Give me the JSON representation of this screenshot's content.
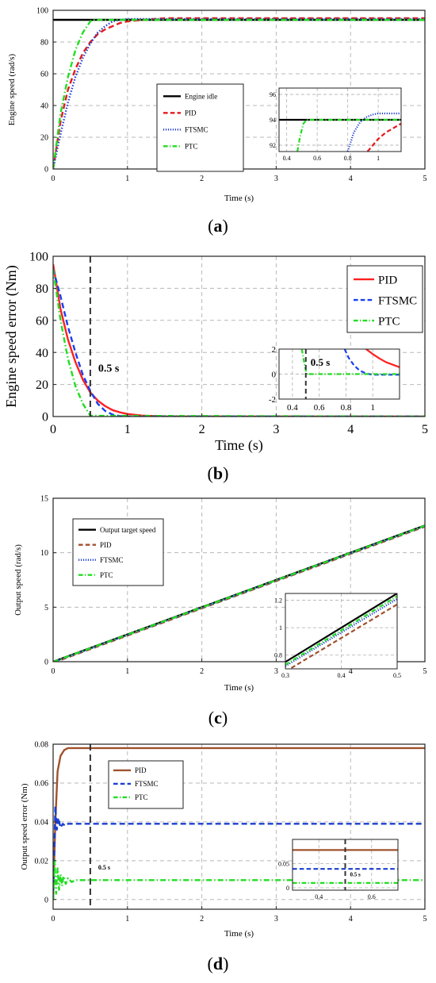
{
  "chart_data": [
    {
      "id": "a",
      "type": "line",
      "caption_letter": "a",
      "xlabel": "Time (s)",
      "ylabel": "Engine speed (rad/s)",
      "xlim": [
        0,
        5
      ],
      "ylim": [
        0,
        100
      ],
      "xticks": [
        0,
        1,
        2,
        3,
        4,
        5
      ],
      "yticks": [
        0,
        20,
        40,
        60,
        80,
        100
      ],
      "grid": true,
      "legend_position": "center",
      "series": [
        {
          "name": "Engine idle",
          "color": "#000000",
          "dash": "solid",
          "x": [
            0,
            5
          ],
          "y": [
            94,
            94
          ]
        },
        {
          "name": "PID",
          "color": "#e31a1c",
          "dash": "dash",
          "x": [
            0,
            0.1,
            0.2,
            0.3,
            0.4,
            0.5,
            0.6,
            0.7,
            0.8,
            0.9,
            1.0,
            1.2,
            1.5,
            2,
            3,
            4,
            5
          ],
          "y": [
            0,
            30,
            50,
            63,
            73,
            80,
            85,
            88,
            90,
            92,
            93,
            94,
            95,
            95,
            95,
            95,
            95
          ]
        },
        {
          "name": "FTSMC",
          "color": "#1f3fcf",
          "dash": "dot",
          "x": [
            0,
            0.1,
            0.2,
            0.3,
            0.4,
            0.5,
            0.6,
            0.7,
            0.8,
            0.9,
            1.0,
            1.5,
            2,
            3,
            4,
            5
          ],
          "y": [
            0,
            22,
            42,
            58,
            70,
            79,
            86,
            90,
            93,
            94,
            94.5,
            94.5,
            94.5,
            94.5,
            94.5,
            94.5
          ]
        },
        {
          "name": "PTC",
          "color": "#22dd22",
          "dash": "dashdot",
          "x": [
            0,
            0.1,
            0.2,
            0.3,
            0.4,
            0.5,
            0.52,
            1,
            2,
            3,
            4,
            5
          ],
          "y": [
            0,
            35,
            58,
            75,
            86,
            93,
            94,
            94,
            94,
            94,
            94,
            94
          ]
        }
      ],
      "inset": {
        "xlim": [
          0.35,
          1.15
        ],
        "ylim": [
          91.5,
          96.5
        ],
        "xticks": [
          0.4,
          0.6,
          0.8,
          1
        ],
        "yticks": [
          92,
          94,
          96
        ],
        "series": [
          {
            "name": "Engine idle",
            "x": [
              0.35,
              1.15
            ],
            "y": [
              94,
              94
            ]
          },
          {
            "name": "PID",
            "x": [
              0.93,
              1.0,
              1.05,
              1.15
            ],
            "y": [
              91.5,
              92.5,
              93.0,
              93.7
            ]
          },
          {
            "name": "FTSMC",
            "x": [
              0.8,
              0.84,
              0.88,
              0.92,
              0.96,
              1.0,
              1.15
            ],
            "y": [
              91.5,
              93.0,
              93.8,
              94.2,
              94.4,
              94.5,
              94.5
            ]
          },
          {
            "name": "PTC",
            "x": [
              0.47,
              0.49,
              0.51,
              0.53,
              1.15
            ],
            "y": [
              91.5,
              92.8,
              93.7,
              94.0,
              94.0
            ]
          }
        ]
      }
    },
    {
      "id": "b",
      "type": "line",
      "caption_letter": "b",
      "xlabel": "Time (s)",
      "ylabel": "Engine speed error (Nm)",
      "xlim": [
        0,
        5
      ],
      "ylim": [
        0,
        100
      ],
      "xticks": [
        0,
        1,
        2,
        3,
        4,
        5
      ],
      "yticks": [
        0,
        20,
        40,
        60,
        80,
        100
      ],
      "grid": true,
      "legend_position": "top-right",
      "vline": {
        "x": 0.5,
        "label": "0.5 s"
      },
      "series": [
        {
          "name": "PID",
          "color": "#ff2020",
          "dash": "solid",
          "x": [
            0,
            0.1,
            0.2,
            0.3,
            0.4,
            0.5,
            0.6,
            0.7,
            0.8,
            0.9,
            1.0,
            1.2,
            1.5,
            2,
            5
          ],
          "y": [
            95,
            67,
            48,
            34,
            23,
            15,
            10,
            6.5,
            4,
            2.6,
            1.6,
            0.6,
            0.1,
            0,
            0
          ]
        },
        {
          "name": "FTSMC",
          "color": "#1a3ff0",
          "dash": "dash",
          "x": [
            0,
            0.1,
            0.2,
            0.3,
            0.4,
            0.5,
            0.6,
            0.7,
            0.8,
            0.9,
            1.0,
            1.2,
            5
          ],
          "y": [
            92,
            75,
            56,
            40,
            26,
            16,
            8,
            3.5,
            1.2,
            0.3,
            0,
            0,
            0
          ]
        },
        {
          "name": "PTC",
          "color": "#22dd22",
          "dash": "dashdot",
          "x": [
            0,
            0.1,
            0.2,
            0.3,
            0.4,
            0.5,
            5
          ],
          "y": [
            92,
            60,
            36,
            19,
            8,
            0.5,
            0
          ]
        }
      ],
      "inset": {
        "xlim": [
          0.3,
          1.2
        ],
        "ylim": [
          -2,
          2
        ],
        "xticks": [
          0.4,
          0.6,
          0.8,
          1
        ],
        "yticks": [
          -2,
          0,
          2
        ],
        "vline": {
          "x": 0.5,
          "label": "0.5 s"
        },
        "series": [
          {
            "name": "PID",
            "x": [
              0.95,
              1.0,
              1.05,
              1.1,
              1.2
            ],
            "y": [
              2,
              1.6,
              1.25,
              0.95,
              0.55
            ]
          },
          {
            "name": "FTSMC",
            "x": [
              0.79,
              0.82,
              0.86,
              0.9,
              0.95,
              1.0,
              1.2
            ],
            "y": [
              2,
              1.3,
              0.7,
              0.3,
              0.05,
              -0.05,
              -0.05
            ]
          },
          {
            "name": "PTC",
            "x": [
              0.47,
              0.48,
              0.49,
              0.5,
              0.51,
              1.2
            ],
            "y": [
              2,
              1.4,
              0.8,
              0.3,
              0.0,
              0.0
            ]
          }
        ]
      }
    },
    {
      "id": "c",
      "type": "line",
      "caption_letter": "c",
      "xlabel": "Time (s)",
      "ylabel": "Output speed (rad/s)",
      "xlim": [
        0,
        5
      ],
      "ylim": [
        0,
        15
      ],
      "xticks": [
        0,
        1,
        2,
        3,
        4,
        5
      ],
      "yticks": [
        0,
        5,
        10,
        15
      ],
      "grid": true,
      "legend_position": "top-left",
      "series": [
        {
          "name": "Output target speed",
          "color": "#000000",
          "dash": "solid",
          "x": [
            0,
            5
          ],
          "y": [
            0,
            12.5
          ]
        },
        {
          "name": "PID",
          "color": "#a0522d",
          "dash": "dash",
          "x": [
            0,
            5
          ],
          "y": [
            -0.1,
            12.4
          ]
        },
        {
          "name": "FTSMC",
          "color": "#1a3fd0",
          "dash": "dot",
          "x": [
            0,
            5
          ],
          "y": [
            -0.05,
            12.45
          ]
        },
        {
          "name": "PTC",
          "color": "#22dd22",
          "dash": "dashdot",
          "x": [
            0,
            5
          ],
          "y": [
            -0.02,
            12.48
          ]
        }
      ],
      "inset": {
        "xlim": [
          0.3,
          0.5
        ],
        "ylim": [
          0.7,
          1.25
        ],
        "xticks": [
          0.3,
          0.4,
          0.5
        ],
        "yticks": [
          0.8,
          1,
          1.2
        ],
        "series": [
          {
            "name": "Output target speed",
            "x": [
              0.3,
              0.5
            ],
            "y": [
              0.75,
              1.25
            ]
          },
          {
            "name": "PID",
            "x": [
              0.3,
              0.5
            ],
            "y": [
              0.68,
              1.17
            ]
          },
          {
            "name": "FTSMC",
            "x": [
              0.3,
              0.5
            ],
            "y": [
              0.72,
              1.21
            ]
          },
          {
            "name": "PTC",
            "x": [
              0.3,
              0.5
            ],
            "y": [
              0.73,
              1.23
            ]
          }
        ]
      }
    },
    {
      "id": "d",
      "type": "line",
      "caption_letter": "d",
      "xlabel": "Time (s)",
      "ylabel": "Output speed error (Nm)",
      "xlim": [
        0,
        5
      ],
      "ylim": [
        -0.005,
        0.08
      ],
      "xticks": [
        0,
        1,
        2,
        3,
        4,
        5
      ],
      "yticks": [
        0,
        0.02,
        0.04,
        0.06,
        0.08
      ],
      "grid": true,
      "legend_position": "top-center",
      "vline": {
        "x": 0.5,
        "label": "0.5 s"
      },
      "series": [
        {
          "name": "PID",
          "color": "#a0522d",
          "dash": "solid",
          "x": [
            0,
            0.03,
            0.06,
            0.1,
            0.15,
            0.2,
            0.3,
            5
          ],
          "y": [
            0,
            0.04,
            0.066,
            0.074,
            0.077,
            0.078,
            0.078,
            0.078
          ]
        },
        {
          "name": "FTSMC",
          "color": "#1a3fd0",
          "dash": "dash",
          "x": [
            0,
            0.03,
            0.05,
            0.07,
            0.1,
            0.13,
            0.16,
            0.2,
            0.3,
            5
          ],
          "y": [
            0,
            0.048,
            0.036,
            0.042,
            0.037,
            0.039,
            0.038,
            0.039,
            0.039,
            0.039
          ]
        },
        {
          "name": "PTC",
          "color": "#22dd22",
          "dash": "dashdot",
          "x": [
            0,
            0.02,
            0.04,
            0.06,
            0.08,
            0.1,
            0.12,
            0.14,
            0.17,
            0.2,
            0.25,
            0.3,
            0.4,
            5
          ],
          "y": [
            0,
            0.02,
            0.003,
            0.016,
            0.005,
            0.013,
            0.007,
            0.012,
            0.008,
            0.011,
            0.009,
            0.01,
            0.01,
            0.01
          ]
        }
      ],
      "inset": {
        "xlim": [
          0.3,
          0.7
        ],
        "ylim": [
          -0.005,
          0.1
        ],
        "xticks": [
          0.4,
          0.6
        ],
        "yticks": [
          0,
          0.05
        ],
        "vline": {
          "x": 0.5,
          "label": "0.5 s"
        },
        "series": [
          {
            "name": "PID",
            "x": [
              0.3,
              0.7
            ],
            "y": [
              0.078,
              0.078
            ]
          },
          {
            "name": "FTSMC",
            "x": [
              0.3,
              0.7
            ],
            "y": [
              0.039,
              0.039
            ]
          },
          {
            "name": "PTC",
            "x": [
              0.3,
              0.7
            ],
            "y": [
              0.01,
              0.01
            ]
          }
        ]
      }
    }
  ]
}
